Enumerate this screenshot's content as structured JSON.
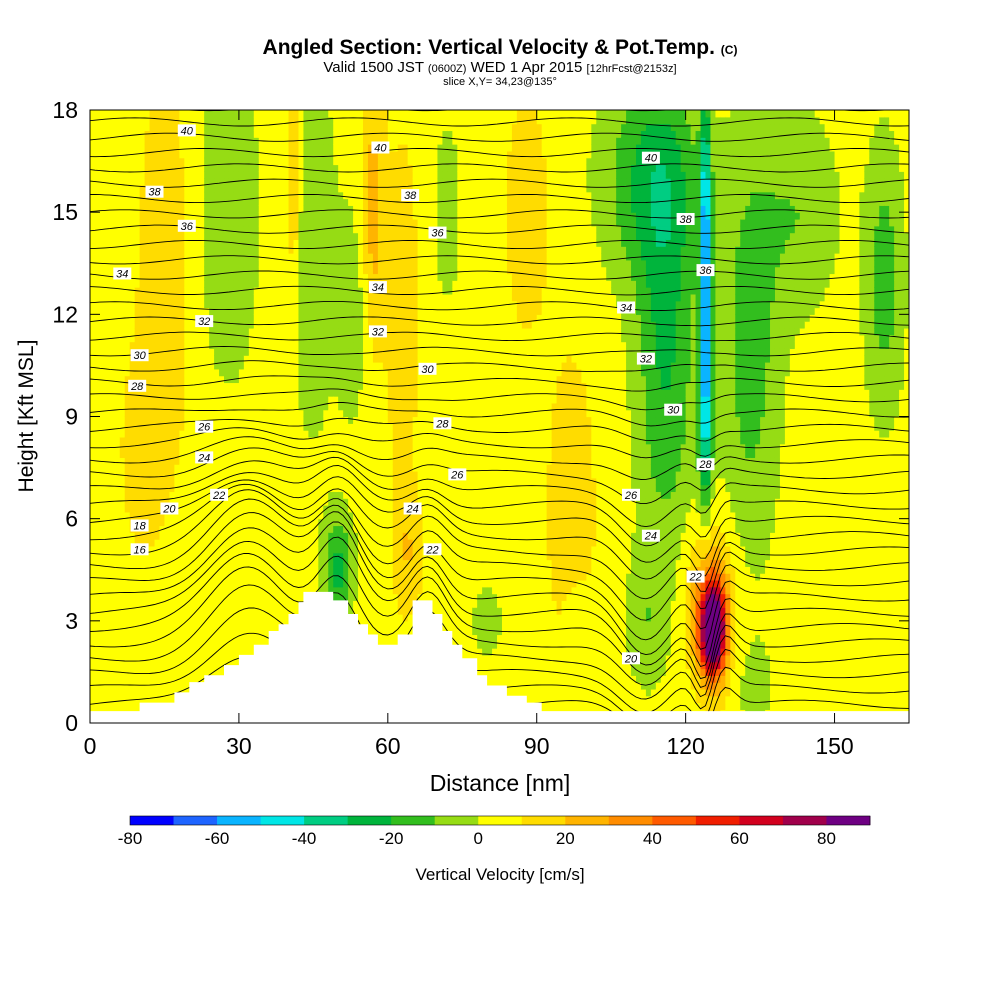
{
  "title": {
    "main": "Angled Section: Vertical Velocity & Pot.Temp.",
    "main_unit": "(C)",
    "valid_prefix": "Valid 1500 JST",
    "valid_zulu": "(0600Z)",
    "valid_date": "WED 1 Apr 2015",
    "valid_forecast": "[12hrFcst@2153z]",
    "slice": "slice X,Y= 34,23@135°"
  },
  "chart_data": {
    "type": "heatmap",
    "xlabel": "Distance [nm]",
    "ylabel": "Height [Kft MSL]",
    "xlim": [
      0,
      165
    ],
    "ylim": [
      0,
      18
    ],
    "x_ticks": [
      0,
      30,
      60,
      90,
      120,
      150
    ],
    "y_ticks": [
      0,
      3,
      6,
      9,
      12,
      15,
      18
    ],
    "colorbar": {
      "label": "Vertical Velocity [cm/s]",
      "min": -80,
      "max": 90,
      "step": 10,
      "tick_labels": [
        -80,
        -60,
        -40,
        -20,
        0,
        20,
        40,
        60,
        80
      ],
      "colors": [
        "#0000ff",
        "#1e64ff",
        "#0ab4ff",
        "#00e6e6",
        "#00cd82",
        "#00b43c",
        "#32be1e",
        "#96dc14",
        "#ffff00",
        "#ffdc00",
        "#ffb400",
        "#ff8c00",
        "#ff5a00",
        "#f01e00",
        "#d2001e",
        "#a0004b",
        "#6e0082"
      ]
    },
    "terrain": [
      [
        0,
        0.35
      ],
      [
        10,
        0.35
      ],
      [
        10,
        0.6
      ],
      [
        17,
        0.6
      ],
      [
        17,
        0.9
      ],
      [
        20,
        0.9
      ],
      [
        20,
        1.2
      ],
      [
        23,
        1.2
      ],
      [
        23,
        1.4
      ],
      [
        27,
        1.4
      ],
      [
        27,
        1.7
      ],
      [
        30,
        1.7
      ],
      [
        30,
        2.0
      ],
      [
        33,
        2.0
      ],
      [
        33,
        2.3
      ],
      [
        36,
        2.3
      ],
      [
        36,
        2.7
      ],
      [
        38,
        2.7
      ],
      [
        38,
        2.9
      ],
      [
        40,
        2.9
      ],
      [
        40,
        3.2
      ],
      [
        42,
        3.2
      ],
      [
        42,
        3.55
      ],
      [
        43,
        3.55
      ],
      [
        43,
        3.85
      ],
      [
        49,
        3.85
      ],
      [
        49,
        3.6
      ],
      [
        52,
        3.6
      ],
      [
        52,
        3.2
      ],
      [
        54,
        3.2
      ],
      [
        54,
        2.9
      ],
      [
        56,
        2.9
      ],
      [
        56,
        2.6
      ],
      [
        58,
        2.6
      ],
      [
        58,
        2.3
      ],
      [
        62,
        2.3
      ],
      [
        62,
        2.6
      ],
      [
        65,
        2.6
      ],
      [
        65,
        3.6
      ],
      [
        69,
        3.6
      ],
      [
        69,
        3.2
      ],
      [
        71,
        3.2
      ],
      [
        71,
        2.7
      ],
      [
        73,
        2.7
      ],
      [
        73,
        2.3
      ],
      [
        75,
        2.3
      ],
      [
        75,
        1.9
      ],
      [
        78,
        1.9
      ],
      [
        78,
        1.4
      ],
      [
        80,
        1.4
      ],
      [
        80,
        1.1
      ],
      [
        84,
        1.1
      ],
      [
        84,
        0.8
      ],
      [
        88,
        0.8
      ],
      [
        88,
        0.6
      ],
      [
        91,
        0.6
      ],
      [
        91,
        0.35
      ],
      [
        165,
        0.35
      ]
    ],
    "contour_labels": [
      {
        "text": "40",
        "x": 19.5,
        "y": 17.4
      },
      {
        "text": "40",
        "x": 58.5,
        "y": 16.9
      },
      {
        "text": "40",
        "x": 113,
        "y": 16.6
      },
      {
        "text": "38",
        "x": 13,
        "y": 15.6
      },
      {
        "text": "38",
        "x": 64.5,
        "y": 15.5
      },
      {
        "text": "38",
        "x": 120,
        "y": 14.8
      },
      {
        "text": "36",
        "x": 19.5,
        "y": 14.6
      },
      {
        "text": "36",
        "x": 70,
        "y": 14.4
      },
      {
        "text": "36",
        "x": 124,
        "y": 13.3
      },
      {
        "text": "34",
        "x": 6.5,
        "y": 13.2
      },
      {
        "text": "34",
        "x": 58,
        "y": 12.8
      },
      {
        "text": "34",
        "x": 108,
        "y": 12.2
      },
      {
        "text": "32",
        "x": 23,
        "y": 11.8
      },
      {
        "text": "32",
        "x": 58,
        "y": 11.5
      },
      {
        "text": "32",
        "x": 112,
        "y": 10.7
      },
      {
        "text": "30",
        "x": 10,
        "y": 10.8
      },
      {
        "text": "30",
        "x": 68,
        "y": 10.4
      },
      {
        "text": "30",
        "x": 117.5,
        "y": 9.2
      },
      {
        "text": "28",
        "x": 9.5,
        "y": 9.9
      },
      {
        "text": "28",
        "x": 71,
        "y": 8.8
      },
      {
        "text": "28",
        "x": 124,
        "y": 7.6
      },
      {
        "text": "26",
        "x": 23,
        "y": 8.7
      },
      {
        "text": "26",
        "x": 74,
        "y": 7.3
      },
      {
        "text": "26",
        "x": 109,
        "y": 6.7
      },
      {
        "text": "24",
        "x": 23,
        "y": 7.8
      },
      {
        "text": "24",
        "x": 65,
        "y": 6.3
      },
      {
        "text": "24",
        "x": 113,
        "y": 5.5
      },
      {
        "text": "22",
        "x": 26,
        "y": 6.7
      },
      {
        "text": "22",
        "x": 69,
        "y": 5.1
      },
      {
        "text": "22",
        "x": 122,
        "y": 4.3
      },
      {
        "text": "20",
        "x": 16,
        "y": 6.3
      },
      {
        "text": "20",
        "x": 109,
        "y": 1.9
      },
      {
        "text": "18",
        "x": 10,
        "y": 5.8
      },
      {
        "text": "16",
        "x": 10,
        "y": 5.1
      }
    ]
  }
}
